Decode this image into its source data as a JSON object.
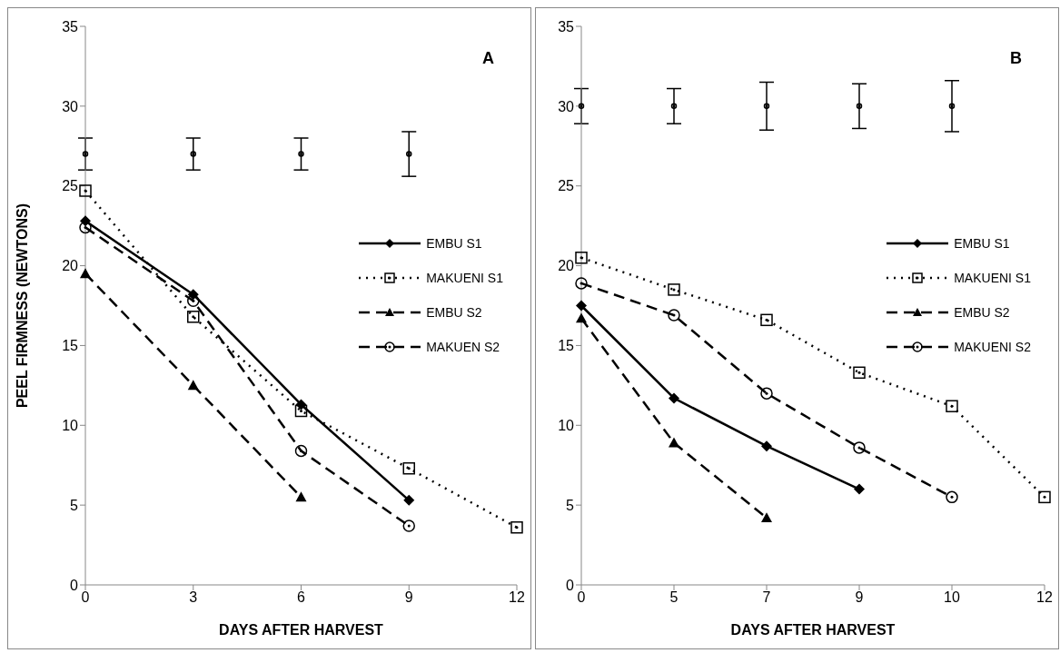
{
  "chart_data": [
    {
      "type": "line",
      "xlabel": "DAYS AFTER HARVEST",
      "ylabel": "PEEL FIRMNESS (NEWTONS)",
      "categories": [
        "0",
        "3",
        "6",
        "9",
        "12"
      ],
      "ylim": [
        0,
        35
      ],
      "yticks": [
        0,
        5,
        10,
        15,
        20,
        25,
        30,
        35
      ],
      "grid": false,
      "legend": "right",
      "annotations": [
        "A"
      ],
      "series": [
        {
          "type": "scatter",
          "marker": "circle",
          "color": "#000000",
          "values": [
            27,
            27,
            27,
            27,
            null
          ],
          "errors": [
            1,
            1,
            1,
            1.4,
            null
          ]
        },
        {
          "name": "EMBU S1",
          "color": "#000000",
          "marker": "diamond",
          "line_style": "solid",
          "values": [
            22.8,
            18.2,
            11.3,
            5.3,
            null
          ]
        },
        {
          "name": "MAKUENI S1",
          "color": "#000000",
          "marker": "square",
          "line_style": "dotted",
          "values": [
            24.7,
            16.8,
            10.9,
            7.3,
            3.6
          ]
        },
        {
          "name": "EMBU S2",
          "color": "#000000",
          "marker": "triangle",
          "line_style": "dashed",
          "values": [
            19.5,
            12.5,
            5.5,
            null,
            null
          ]
        },
        {
          "name": "MAKUEN S2",
          "color": "#000000",
          "marker": "circle",
          "line_style": "dashed",
          "values": [
            22.4,
            17.8,
            8.4,
            3.7,
            null
          ]
        }
      ]
    },
    {
      "type": "line",
      "xlabel": "DAYS AFTER HARVEST",
      "categories": [
        "0",
        "5",
        "7",
        "9",
        "10",
        "12"
      ],
      "ylim": [
        0,
        35
      ],
      "yticks": [
        0,
        5,
        10,
        15,
        20,
        25,
        30,
        35
      ],
      "grid": false,
      "legend": "right",
      "annotations": [
        "B"
      ],
      "series": [
        {
          "type": "scatter",
          "marker": "circle",
          "color": "#000000",
          "values": [
            30,
            30,
            30,
            30,
            30,
            null
          ],
          "errors": [
            1.1,
            1.1,
            1.5,
            1.4,
            1.6,
            null
          ]
        },
        {
          "name": "EMBU S1",
          "color": "#000000",
          "marker": "diamond",
          "line_style": "solid",
          "values": [
            17.5,
            11.7,
            8.7,
            6.0,
            null,
            null
          ]
        },
        {
          "name": "MAKUENI S1",
          "color": "#000000",
          "marker": "square",
          "line_style": "dotted",
          "values": [
            20.5,
            18.5,
            16.6,
            13.3,
            11.2,
            5.5
          ]
        },
        {
          "name": "EMBU S2",
          "color": "#000000",
          "marker": "triangle",
          "line_style": "dashed",
          "values": [
            16.7,
            8.9,
            4.2,
            null,
            null,
            null
          ]
        },
        {
          "name": "MAKUENI S2",
          "color": "#000000",
          "marker": "circle",
          "line_style": "dashed",
          "values": [
            18.9,
            16.9,
            12.0,
            8.6,
            5.5,
            null
          ]
        }
      ]
    }
  ]
}
